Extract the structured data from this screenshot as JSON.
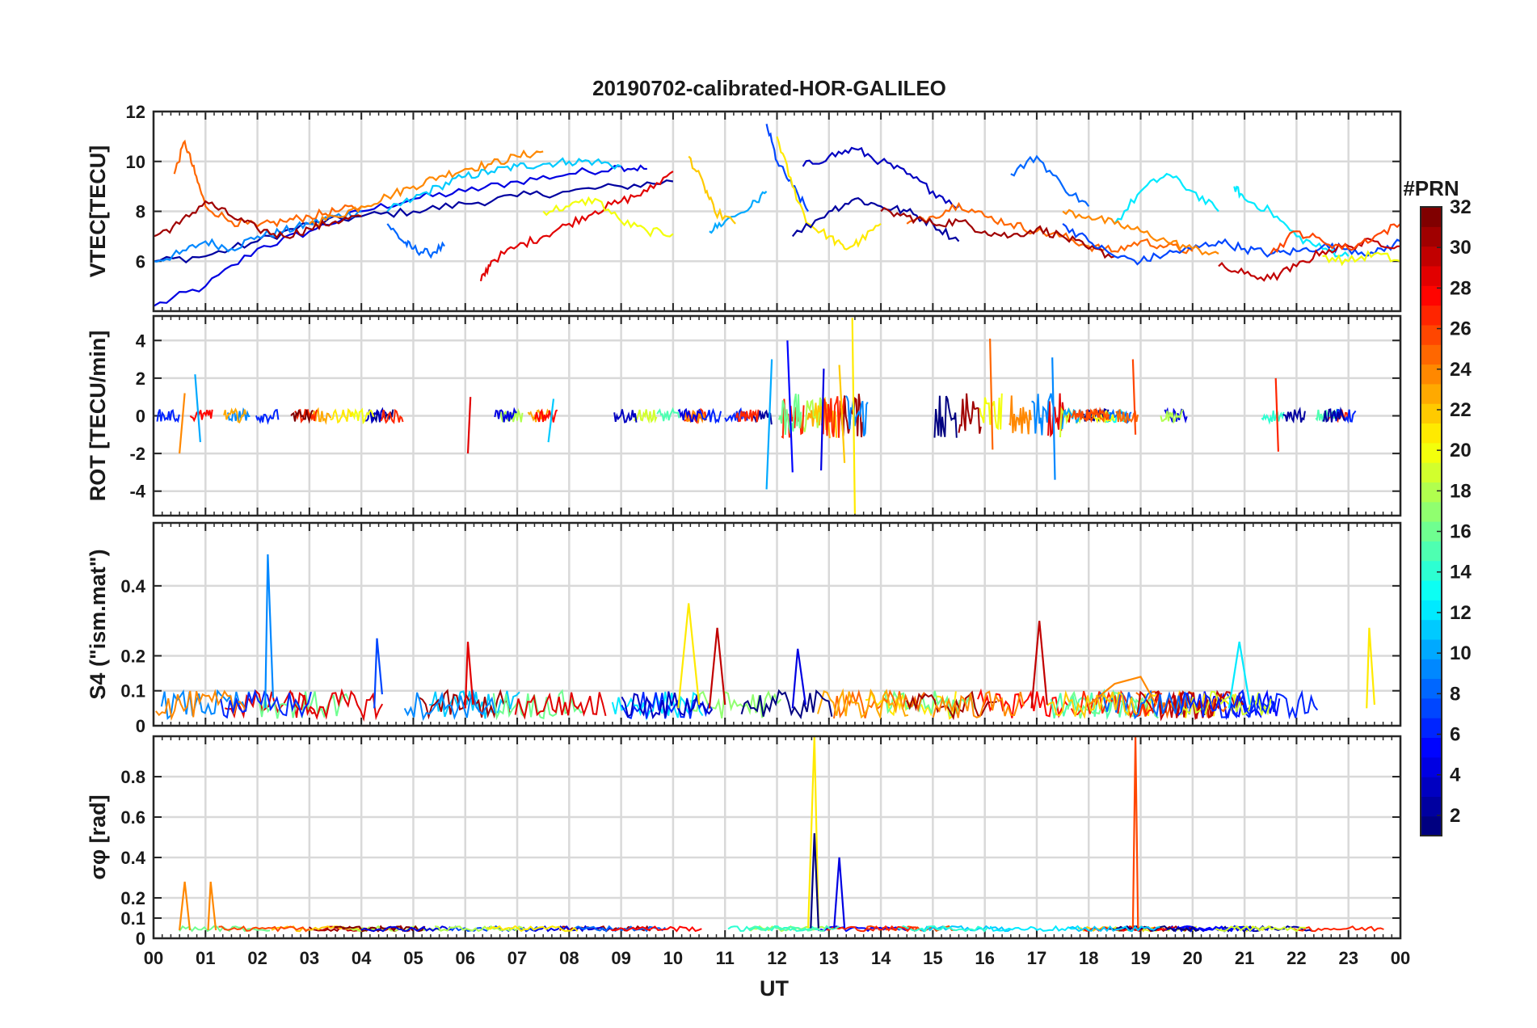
{
  "chart_data": {
    "type": "line",
    "title": "20190702-calibrated-HOR-GALILEO",
    "xlabel": "UT",
    "x_ticks": [
      "00",
      "01",
      "02",
      "03",
      "04",
      "05",
      "06",
      "07",
      "08",
      "09",
      "10",
      "11",
      "12",
      "13",
      "14",
      "15",
      "16",
      "17",
      "18",
      "19",
      "20",
      "21",
      "22",
      "23",
      "00"
    ],
    "xlim": [
      0,
      24
    ],
    "colorbar": {
      "label": "#PRN",
      "range": [
        1,
        32
      ],
      "ticks": [
        "2",
        "4",
        "6",
        "8",
        "10",
        "12",
        "14",
        "16",
        "18",
        "20",
        "22",
        "24",
        "26",
        "28",
        "30",
        "32"
      ],
      "colormap": "jet"
    },
    "panels": [
      {
        "ylabel": "VTEC[TECU]",
        "ylim": [
          4,
          12
        ],
        "yticks": [
          "6",
          "8",
          "10",
          "12"
        ],
        "series": [
          {
            "prn": 4,
            "x": [
              0,
              1,
              2,
              3,
              4,
              5,
              6,
              7,
              8,
              9,
              9.5
            ],
            "values": [
              4.2,
              5.0,
              6.5,
              7.2,
              8.0,
              8.5,
              8.8,
              9.2,
              9.5,
              9.8,
              9.7
            ]
          },
          {
            "prn": 2,
            "x": [
              0,
              1,
              2,
              3,
              4,
              5,
              6,
              7,
              8,
              9,
              10
            ],
            "values": [
              6.0,
              6.2,
              6.8,
              7.5,
              7.8,
              8.0,
              8.3,
              8.6,
              8.8,
              9.0,
              9.2
            ]
          },
          {
            "prn": 9,
            "x": [
              0,
              0.5,
              1,
              1.5,
              2,
              2.5,
              3,
              3.5,
              4
            ],
            "values": [
              6.0,
              6.3,
              6.8,
              6.5,
              7.0,
              7.2,
              7.5,
              7.8,
              8.0
            ]
          },
          {
            "prn": 8,
            "x": [
              4.5,
              4.8,
              5,
              5.3,
              5.6
            ],
            "values": [
              7.5,
              6.8,
              6.5,
              6.3,
              6.6
            ]
          },
          {
            "prn": 11,
            "x": [
              4.5,
              5,
              5.5,
              6,
              6.5,
              7,
              7.5,
              8,
              8.5,
              9
            ],
            "values": [
              8.0,
              8.5,
              9.0,
              9.4,
              9.6,
              9.8,
              9.9,
              10.0,
              10.0,
              9.8
            ]
          },
          {
            "prn": 25,
            "x": [
              0.4,
              0.6,
              0.8,
              1,
              1.5,
              2,
              2.5,
              3,
              3.5,
              4
            ],
            "values": [
              9.5,
              10.8,
              9.5,
              8.2,
              7.6,
              7.4,
              7.6,
              7.8,
              8.0,
              8.2
            ]
          },
          {
            "prn": 24,
            "x": [
              3,
              3.5,
              4,
              4.5,
              5,
              5.5,
              6,
              6.5,
              7,
              7.5
            ],
            "values": [
              7.5,
              7.8,
              8.2,
              8.6,
              9.0,
              9.4,
              9.7,
              9.9,
              10.2,
              10.4
            ]
          },
          {
            "prn": 31,
            "x": [
              0,
              0.5,
              1,
              1.5,
              2,
              2.5,
              3,
              3.5,
              4
            ],
            "values": [
              7.0,
              7.5,
              8.4,
              7.8,
              7.3,
              7.0,
              7.3,
              7.6,
              7.8
            ]
          },
          {
            "prn": 29,
            "x": [
              6.3,
              6.5,
              7,
              7.5,
              8,
              8.5,
              9,
              9.5,
              10
            ],
            "values": [
              5.2,
              6.0,
              6.6,
              7.0,
              7.5,
              8.0,
              8.4,
              8.8,
              9.6
            ]
          },
          {
            "prn": 20,
            "x": [
              7.5,
              8,
              8.5,
              9,
              9.5,
              10
            ],
            "values": [
              8.0,
              8.2,
              8.5,
              7.6,
              7.2,
              7.1
            ]
          },
          {
            "prn": 10,
            "x": [
              10.7,
              11,
              11.5,
              11.8
            ],
            "values": [
              7.2,
              7.6,
              8.2,
              8.8
            ]
          },
          {
            "prn": 22,
            "x": [
              10.3,
              10.6,
              10.8,
              11.2
            ],
            "values": [
              10.2,
              9.0,
              8.0,
              7.5
            ]
          },
          {
            "prn": 7,
            "x": [
              11.8,
              12,
              12.3,
              12.6
            ],
            "values": [
              11.5,
              10.0,
              9.0,
              8.0
            ]
          },
          {
            "prn": 21,
            "x": [
              12,
              12.3,
              12.6,
              13,
              13.3,
              13.6,
              14
            ],
            "values": [
              11.0,
              9.0,
              7.5,
              7.0,
              6.5,
              6.8,
              7.5
            ]
          },
          {
            "prn": 3,
            "x": [
              12.5,
              13,
              13.5,
              14,
              14.5,
              15,
              15.5
            ],
            "values": [
              9.8,
              10.2,
              10.5,
              10.0,
              9.5,
              8.8,
              8.2
            ]
          },
          {
            "prn": 2,
            "x": [
              12.3,
              13,
              13.5,
              14,
              14.5,
              15,
              15.5
            ],
            "values": [
              7.0,
              8.0,
              8.5,
              8.2,
              8.0,
              7.5,
              6.8
            ]
          },
          {
            "prn": 8,
            "x": [
              16.5,
              17,
              17.5,
              18
            ],
            "values": [
              9.5,
              10.2,
              9.0,
              8.2
            ]
          },
          {
            "prn": 25,
            "x": [
              14.5,
              15,
              15.5,
              16,
              16.5,
              17,
              17.5,
              18,
              18.5,
              19,
              19.5,
              20
            ],
            "values": [
              7.5,
              7.8,
              8.3,
              7.8,
              7.5,
              7.2,
              7.0,
              6.6,
              6.4,
              6.8,
              6.6,
              6.4
            ]
          },
          {
            "prn": 31,
            "x": [
              14,
              14.5,
              15,
              15.5,
              16,
              16.5,
              17,
              17.5,
              18,
              18.5
            ],
            "values": [
              8.0,
              7.8,
              7.5,
              7.6,
              7.2,
              7.0,
              7.3,
              7.0,
              6.5,
              6.2
            ]
          },
          {
            "prn": 12,
            "x": [
              18.5,
              19,
              19.5,
              20,
              20.5
            ],
            "values": [
              7.5,
              8.8,
              9.5,
              8.8,
              8.0
            ]
          },
          {
            "prn": 12,
            "x": [
              20.8,
              21,
              21.5,
              22,
              22.5,
              23
            ],
            "values": [
              9.0,
              8.5,
              8.0,
              7.0,
              6.5,
              6.2
            ]
          },
          {
            "prn": 7,
            "x": [
              17.5,
              18,
              18.5,
              19,
              19.5,
              20,
              20.5,
              21,
              21.5,
              22,
              22.5,
              23,
              23.5,
              24
            ],
            "values": [
              7.5,
              6.8,
              6.2,
              6.0,
              6.3,
              6.5,
              6.8,
              6.5,
              6.3,
              6.4,
              6.6,
              6.5,
              6.3,
              6.8
            ]
          },
          {
            "prn": 24,
            "x": [
              17.5,
              18,
              18.5,
              19,
              19.5,
              20,
              20.5
            ],
            "values": [
              8.0,
              7.8,
              7.5,
              7.2,
              6.8,
              6.5,
              6.3
            ]
          },
          {
            "prn": 30,
            "x": [
              20.5,
              21,
              21.5,
              22,
              22.5,
              23,
              23.5,
              24
            ],
            "values": [
              5.8,
              5.5,
              5.3,
              5.8,
              6.4,
              6.6,
              6.8,
              6.6
            ]
          },
          {
            "prn": 26,
            "x": [
              21.5,
              22,
              22.5,
              23,
              23.5,
              24
            ],
            "values": [
              6.3,
              7.2,
              6.8,
              6.5,
              7.0,
              7.5
            ]
          },
          {
            "prn": 20,
            "x": [
              22.5,
              23,
              23.5,
              24
            ],
            "values": [
              6.2,
              6.0,
              6.3,
              6.0
            ]
          }
        ]
      },
      {
        "ylabel": "ROT [TECU/min]",
        "ylim": [
          -5.3,
          5.3
        ],
        "yticks": [
          "-4",
          "-2",
          "0",
          "2",
          "4"
        ],
        "series": [
          {
            "prn": 10,
            "x": [
              0.8,
              0.9
            ],
            "values": [
              2.2,
              -1.4
            ]
          },
          {
            "prn": 24,
            "x": [
              0.5,
              0.6
            ],
            "values": [
              -2.0,
              1.2
            ]
          },
          {
            "prn": 29,
            "x": [
              6.05,
              6.1
            ],
            "values": [
              -2.0,
              1.0
            ]
          },
          {
            "prn": 11,
            "x": [
              7.6,
              7.7
            ],
            "values": [
              -1.4,
              0.9
            ]
          },
          {
            "prn": 10,
            "x": [
              11.8,
              11.9
            ],
            "values": [
              -3.9,
              3.0
            ]
          },
          {
            "prn": 5,
            "x": [
              12.2,
              12.3
            ],
            "values": [
              4.0,
              -3.0
            ]
          },
          {
            "prn": 4,
            "x": [
              12.85,
              12.9
            ],
            "values": [
              -2.9,
              2.5
            ]
          },
          {
            "prn": 21,
            "x": [
              13.45,
              13.5
            ],
            "values": [
              5.2,
              -5.2
            ]
          },
          {
            "prn": 22,
            "x": [
              13.2,
              13.3
            ],
            "values": [
              2.7,
              -2.5
            ]
          },
          {
            "prn": 25,
            "x": [
              16.1,
              16.15
            ],
            "values": [
              4.1,
              -1.8
            ]
          },
          {
            "prn": 9,
            "x": [
              17.3,
              17.35
            ],
            "values": [
              3.1,
              -3.4
            ]
          },
          {
            "prn": 26,
            "x": [
              18.85,
              18.9
            ],
            "values": [
              3.0,
              -1.0
            ]
          },
          {
            "prn": 27,
            "x": [
              21.6,
              21.65
            ],
            "values": [
              2.0,
              -1.9
            ]
          }
        ]
      },
      {
        "ylabel": "S4 (\"ism.mat\")",
        "ylim": [
          0,
          0.58
        ],
        "yticks": [
          "0",
          "0.1",
          "0.2",
          "0.4"
        ],
        "series": [
          {
            "prn": 9,
            "x": [
              2.15,
              2.2,
              2.3
            ],
            "values": [
              0.05,
              0.49,
              0.08
            ]
          },
          {
            "prn": 7,
            "x": [
              4.25,
              4.3,
              4.4
            ],
            "values": [
              0.05,
              0.25,
              0.09
            ]
          },
          {
            "prn": 29,
            "x": [
              6.0,
              6.05,
              6.15
            ],
            "values": [
              0.05,
              0.24,
              0.06
            ]
          },
          {
            "prn": 21,
            "x": [
              10.1,
              10.3,
              10.5
            ],
            "values": [
              0.05,
              0.35,
              0.06
            ]
          },
          {
            "prn": 30,
            "x": [
              10.7,
              10.85,
              11.0
            ],
            "values": [
              0.05,
              0.28,
              0.06
            ]
          },
          {
            "prn": 4,
            "x": [
              12.3,
              12.4,
              12.55
            ],
            "values": [
              0.05,
              0.22,
              0.06
            ]
          },
          {
            "prn": 30,
            "x": [
              16.9,
              17.05,
              17.2
            ],
            "values": [
              0.05,
              0.3,
              0.06
            ]
          },
          {
            "prn": 24,
            "x": [
              18.0,
              18.5,
              19.0,
              19.3
            ],
            "values": [
              0.06,
              0.12,
              0.14,
              0.06
            ]
          },
          {
            "prn": 12,
            "x": [
              20.7,
              20.9,
              21.1
            ],
            "values": [
              0.05,
              0.24,
              0.06
            ]
          },
          {
            "prn": 21,
            "x": [
              23.35,
              23.4,
              23.5
            ],
            "values": [
              0.05,
              0.28,
              0.06
            ]
          }
        ]
      },
      {
        "ylabel": "σφ [rad]",
        "ylim": [
          0,
          1.0
        ],
        "yticks": [
          "0",
          "0.1",
          "0.2",
          "0.4",
          "0.6",
          "0.8"
        ],
        "series": [
          {
            "prn": 24,
            "x": [
              0.5,
              0.6,
              0.7
            ],
            "values": [
              0.04,
              0.28,
              0.04
            ]
          },
          {
            "prn": 24,
            "x": [
              1.05,
              1.1,
              1.2
            ],
            "values": [
              0.04,
              0.28,
              0.04
            ]
          },
          {
            "prn": 21,
            "x": [
              12.6,
              12.72,
              12.8
            ],
            "values": [
              0.05,
              1.0,
              0.05
            ]
          },
          {
            "prn": 1,
            "x": [
              12.65,
              12.72,
              12.8
            ],
            "values": [
              0.05,
              0.52,
              0.05
            ]
          },
          {
            "prn": 4,
            "x": [
              13.1,
              13.2,
              13.3
            ],
            "values": [
              0.05,
              0.4,
              0.05
            ]
          },
          {
            "prn": 26,
            "x": [
              18.85,
              18.9,
              18.95
            ],
            "values": [
              0.05,
              1.0,
              0.05
            ]
          }
        ]
      }
    ]
  }
}
